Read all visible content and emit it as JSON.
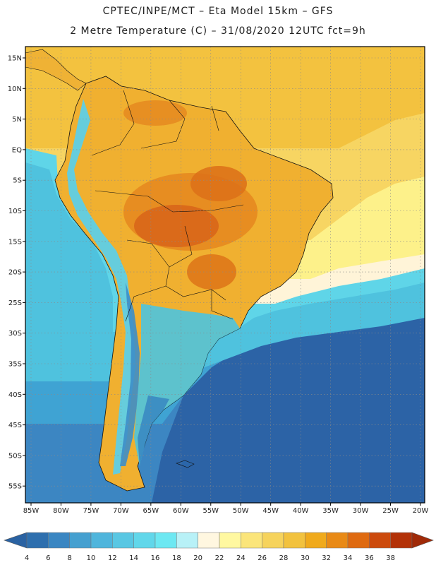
{
  "header": {
    "line1": "CPTEC/INPE/MCT –  Eta Model 15km – GFS",
    "line2": "2 Metre Temperature (C) – 31/08/2020 12UTC fct=9h"
  },
  "map": {
    "region": "South America",
    "lat_labels": [
      "15N",
      "10N",
      "5N",
      "EQ",
      "5S",
      "10S",
      "15S",
      "20S",
      "25S",
      "30S",
      "35S",
      "40S",
      "45S",
      "50S",
      "55S"
    ],
    "lon_labels": [
      "85W",
      "80W",
      "75W",
      "70W",
      "65W",
      "60W",
      "55W",
      "50W",
      "45W",
      "40W",
      "35W",
      "30W",
      "25W",
      "20W"
    ]
  },
  "colorbar": {
    "labels": [
      "4",
      "6",
      "8",
      "10",
      "12",
      "14",
      "16",
      "18",
      "20",
      "22",
      "24",
      "26",
      "28",
      "30",
      "32",
      "34",
      "36",
      "38"
    ],
    "colors": [
      "#2e6fae",
      "#3a86c2",
      "#45a0d0",
      "#4fb5dc",
      "#59c7e3",
      "#61d7ea",
      "#6de8f2",
      "#b8f1f7",
      "#fff7e0",
      "#fff8a0",
      "#fbe57a",
      "#f6d35c",
      "#f2c23e",
      "#f0aa1c",
      "#e98a16",
      "#df6a10",
      "#cc4a0c",
      "#b33208"
    ],
    "low_color": "#2a62a2",
    "high_color": "#a02a08"
  },
  "colors": {
    "ocean_deep": "#2c63a6",
    "ocean_mid": "#3f93c9",
    "ocean_cool": "#4cc0de",
    "ocean_warm": "#f5cc55",
    "land_hot": "#e07b1f"
  }
}
